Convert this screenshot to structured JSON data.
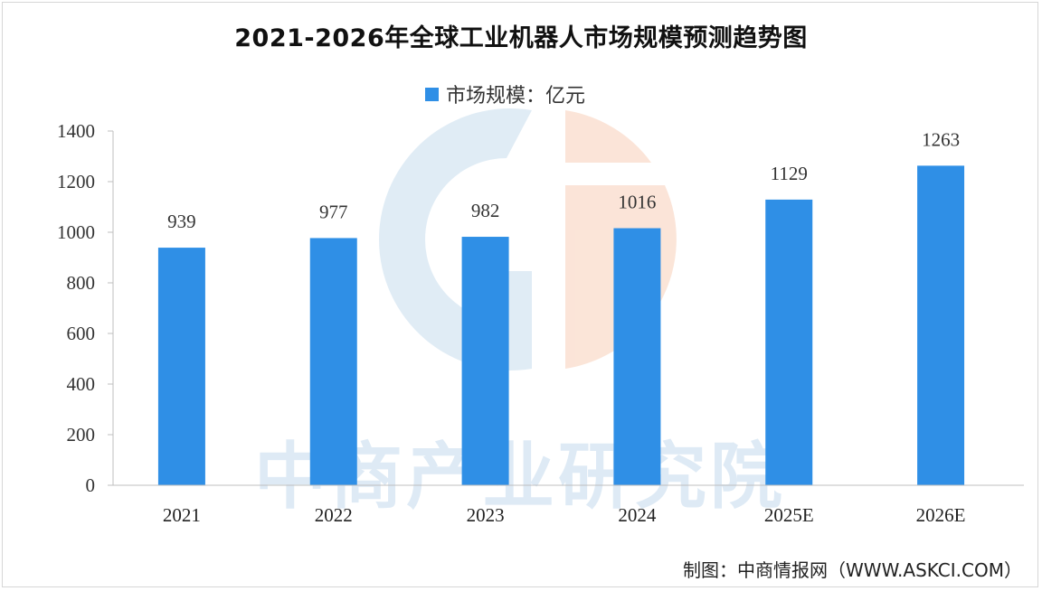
{
  "chart_data": {
    "type": "bar",
    "title": "2021-2026年全球工业机器人市场规模预测趋势图",
    "categories": [
      "2021",
      "2022",
      "2023",
      "2024",
      "2025E",
      "2026E"
    ],
    "series": [
      {
        "name": "市场规模：亿元",
        "values": [
          939,
          977,
          982,
          1016,
          1129,
          1263
        ]
      }
    ],
    "ylim": [
      0,
      1400
    ],
    "yticks": [
      0,
      200,
      400,
      600,
      800,
      1000,
      1200,
      1400
    ],
    "grid": false,
    "legend_position": "top-center",
    "bar_color": "#2f8fe6"
  },
  "source": "制图：中商情报网（WWW.ASKCI.COM）",
  "watermark": "中商产业研究院"
}
